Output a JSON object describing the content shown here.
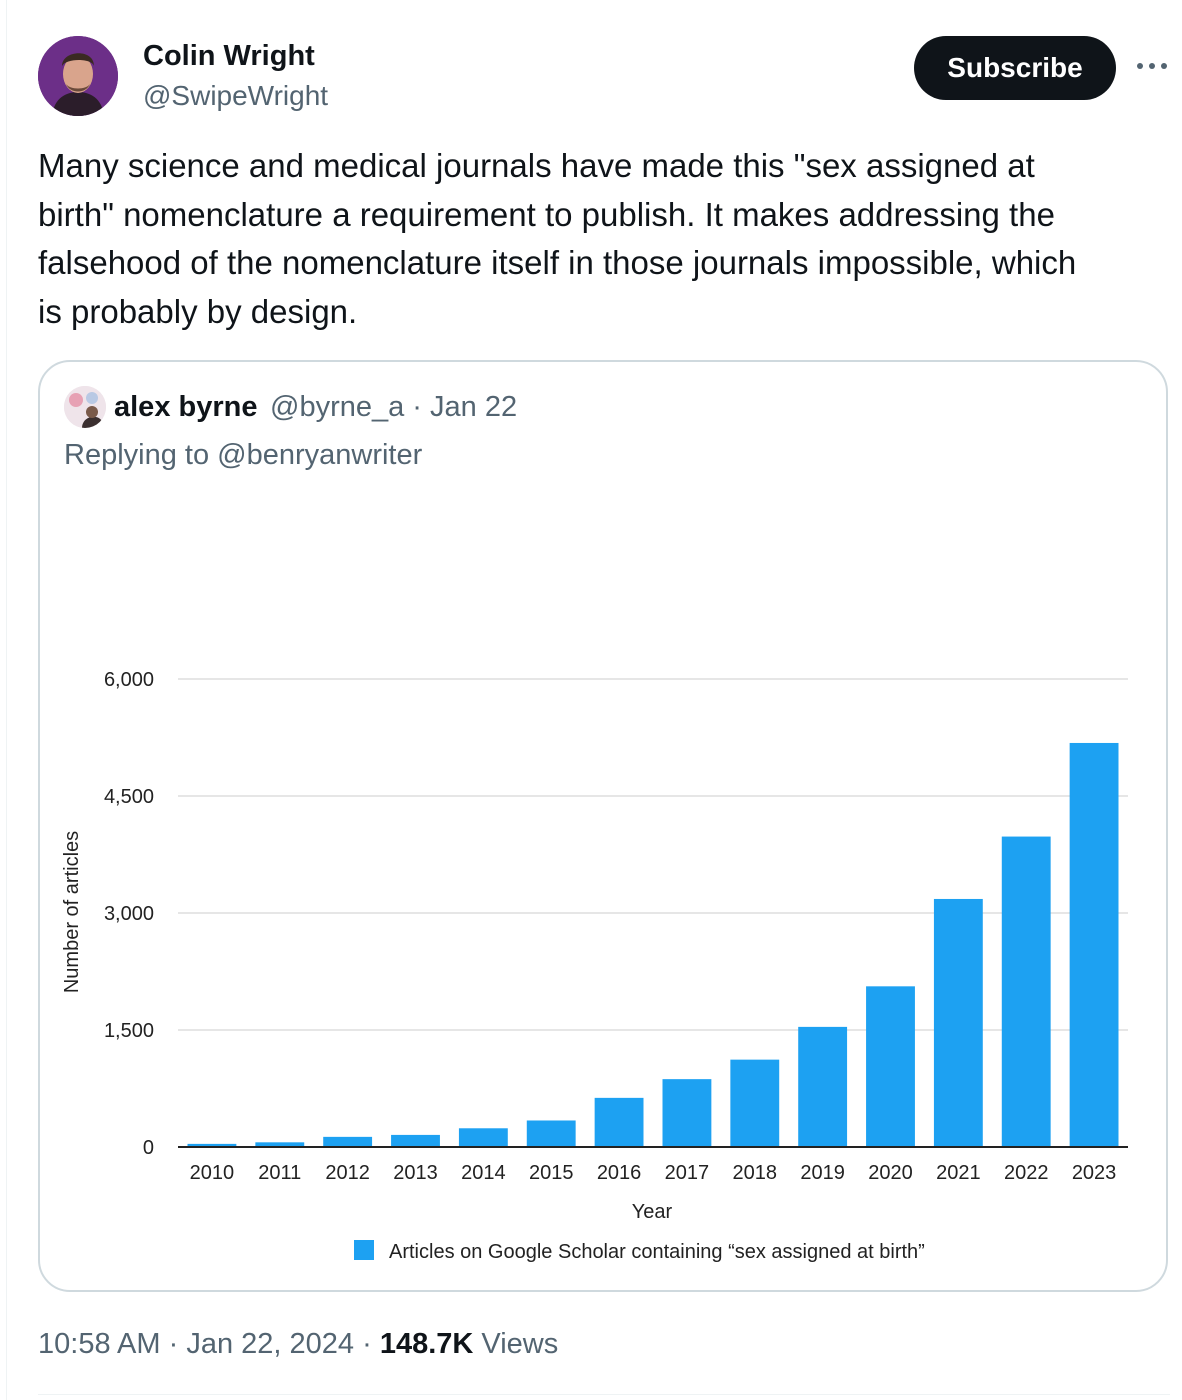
{
  "tweet": {
    "author": {
      "name": "Colin Wright",
      "handle": "@SwipeWright"
    },
    "subscribe_label": "Subscribe",
    "text": "Many science and medical journals have made this \"sex assigned at\nbirth\" nomenclature a requirement to publish. It makes addressing the\nfalsehood of the nomenclature itself in those journals impossible, which\nis probably by design.",
    "time": "10:58 AM",
    "date": "Jan 22, 2024",
    "separator": "·",
    "views_count": "148.7K",
    "views_label": "Views"
  },
  "quote": {
    "author_name": "alex byrne",
    "meta": "@byrne_a · Jan 22",
    "replying_to": "Replying to @benryanwriter"
  },
  "colors": {
    "bar": "#1da1f2",
    "text_secondary": "#536471",
    "border": "#cfd9de",
    "button_bg": "#0f1419"
  },
  "icons": {
    "more": "more-horizontal-icon"
  },
  "chart_data": {
    "type": "bar",
    "categories": [
      "2010",
      "2011",
      "2012",
      "2013",
      "2014",
      "2015",
      "2016",
      "2017",
      "2018",
      "2019",
      "2020",
      "2021",
      "2022",
      "2023"
    ],
    "series": [
      {
        "name": "Articles on Google Scholar containing “sex assigned at birth”",
        "values": [
          40,
          60,
          130,
          155,
          240,
          340,
          630,
          870,
          1120,
          1540,
          2060,
          3180,
          3980,
          5180
        ]
      }
    ],
    "y_ticks": [
      0,
      1500,
      3000,
      4500,
      6000
    ],
    "y_tick_labels": [
      "0",
      "1,500",
      "3,000",
      "4,500",
      "6,000"
    ],
    "ylim": [
      0,
      6000
    ],
    "xlabel": "Year",
    "ylabel": "Number of articles",
    "grid": true,
    "legend": "bottom-center"
  }
}
